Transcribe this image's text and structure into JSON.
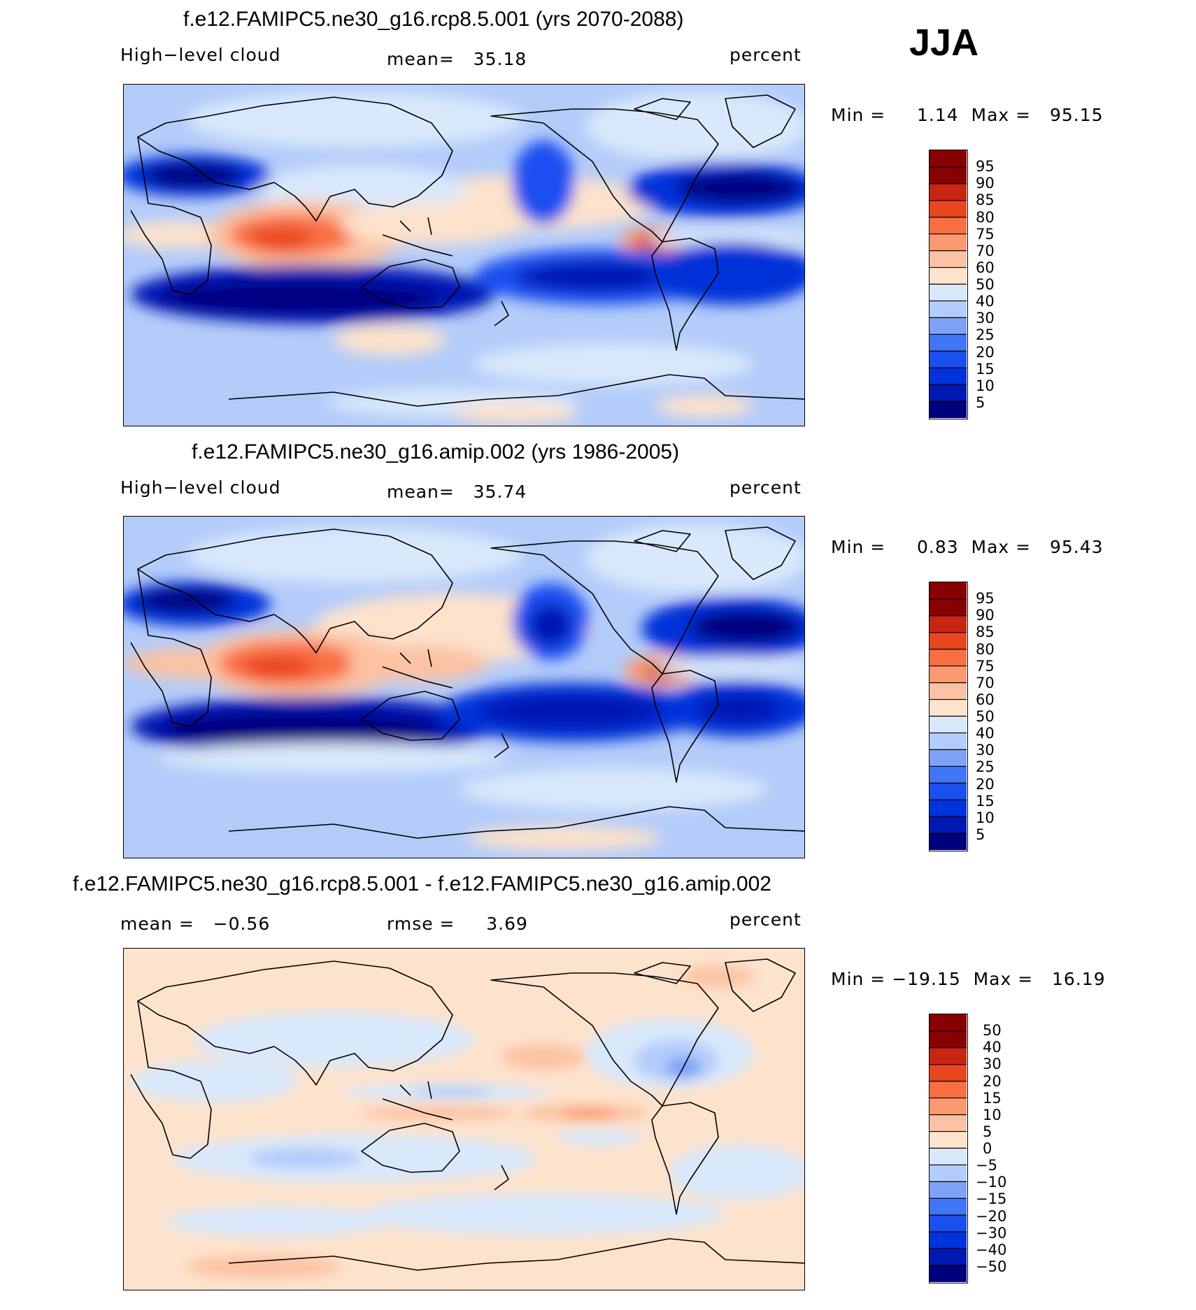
{
  "season": "JJA",
  "panels": [
    {
      "title": "f.e12.FAMIPC5.ne30_g16.rcp8.5.001 (yrs 2070-2088)",
      "variable": "High−level cloud",
      "mean_text": "mean=   35.18",
      "units": "percent",
      "minmax_text": "Min =     1.14  Max =   95.15",
      "colorbar_labels": [
        "95",
        "90",
        "85",
        "80",
        "75",
        "70",
        "60",
        "50",
        "40",
        "30",
        "25",
        "20",
        "15",
        "10",
        "5"
      ]
    },
    {
      "title": "f.e12.FAMIPC5.ne30_g16.amip.002 (yrs 1986-2005)",
      "variable": "High−level cloud",
      "mean_text": "mean=   35.74",
      "units": "percent",
      "minmax_text": "Min =     0.83  Max =   95.43",
      "colorbar_labels": [
        "95",
        "90",
        "85",
        "80",
        "75",
        "70",
        "60",
        "50",
        "40",
        "30",
        "25",
        "20",
        "15",
        "10",
        "5"
      ]
    },
    {
      "title": "f.e12.FAMIPC5.ne30_g16.rcp8.5.001 - f.e12.FAMIPC5.ne30_g16.amip.002",
      "mean_text": "mean =   −0.56",
      "rmse_text": "rmse =     3.69",
      "units": "percent",
      "minmax_text": "Min = −19.15  Max =   16.19",
      "colorbar_labels": [
        "50",
        "40",
        "30",
        "20",
        "15",
        "10",
        "5",
        "0",
        "−5",
        "−10",
        "−15",
        "−20",
        "−30",
        "−40",
        "−50"
      ]
    }
  ],
  "chart_data": [
    {
      "type": "heatmap",
      "title": "f.e12.FAMIPC5.ne30_g16.rcp8.5.001 (yrs 2070-2088)",
      "variable": "High-level cloud",
      "units": "percent",
      "mean": 35.18,
      "min": 1.14,
      "max": 95.15,
      "contour_levels": [
        5,
        10,
        15,
        20,
        25,
        30,
        40,
        50,
        60,
        70,
        75,
        80,
        85,
        90,
        95
      ]
    },
    {
      "type": "heatmap",
      "title": "f.e12.FAMIPC5.ne30_g16.amip.002 (yrs 1986-2005)",
      "variable": "High-level cloud",
      "units": "percent",
      "mean": 35.74,
      "min": 0.83,
      "max": 95.43,
      "contour_levels": [
        5,
        10,
        15,
        20,
        25,
        30,
        40,
        50,
        60,
        70,
        75,
        80,
        85,
        90,
        95
      ]
    },
    {
      "type": "heatmap",
      "title": "f.e12.FAMIPC5.ne30_g16.rcp8.5.001 - f.e12.FAMIPC5.ne30_g16.amip.002",
      "units": "percent",
      "mean": -0.56,
      "rmse": 3.69,
      "min": -19.15,
      "max": 16.19,
      "contour_levels": [
        -50,
        -40,
        -30,
        -20,
        -15,
        -10,
        -5,
        0,
        5,
        10,
        15,
        20,
        30,
        40,
        50
      ]
    }
  ],
  "colors": {
    "scale": [
      "#00007f",
      "#0019b3",
      "#0033d9",
      "#1a4ff0",
      "#4075f5",
      "#7ea2f7",
      "#b3ccfa",
      "#d9e8fb",
      "#fde2cc",
      "#fcc2a3",
      "#fb9a70",
      "#f96f44",
      "#e8461e",
      "#c92612",
      "#880000"
    ]
  }
}
